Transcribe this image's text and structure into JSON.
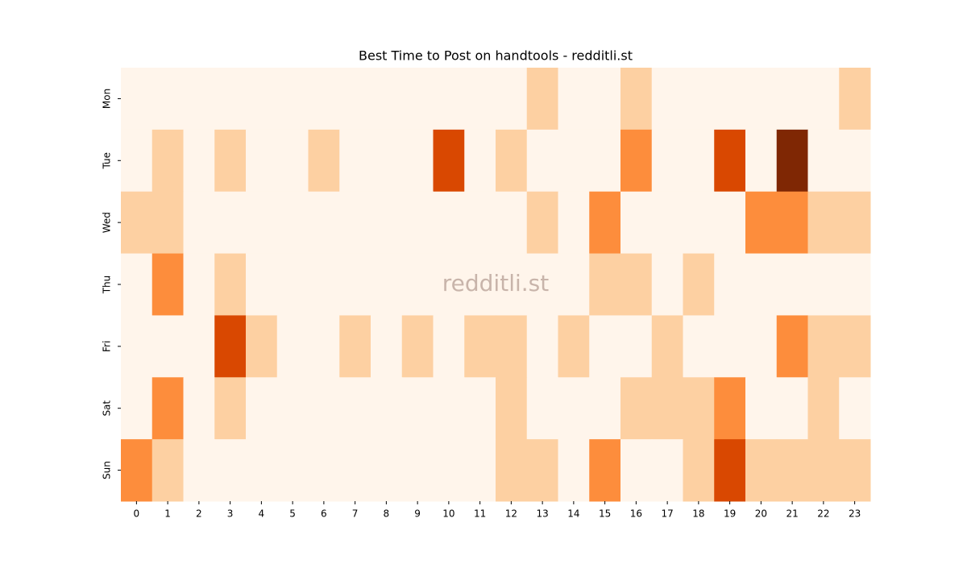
{
  "chart_data": {
    "type": "heatmap",
    "title": "Best Time to Post on handtools - redditli.st",
    "watermark": "redditli.st",
    "x": [
      0,
      1,
      2,
      3,
      4,
      5,
      6,
      7,
      8,
      9,
      10,
      11,
      12,
      13,
      14,
      15,
      16,
      17,
      18,
      19,
      20,
      21,
      22,
      23
    ],
    "y": [
      "Mon",
      "Tue",
      "Wed",
      "Thu",
      "Fri",
      "Sat",
      "Sun"
    ],
    "values": [
      [
        0,
        0,
        0,
        0,
        0,
        0,
        0,
        0,
        0,
        0,
        0,
        0,
        0,
        1,
        0,
        0,
        1,
        0,
        0,
        0,
        0,
        0,
        0,
        1
      ],
      [
        0,
        1,
        0,
        1,
        0,
        0,
        1,
        0,
        0,
        0,
        3,
        0,
        1,
        0,
        0,
        0,
        2,
        0,
        0,
        3,
        0,
        4,
        0,
        0
      ],
      [
        1,
        1,
        0,
        0,
        0,
        0,
        0,
        0,
        0,
        0,
        0,
        0,
        0,
        1,
        0,
        2,
        0,
        0,
        0,
        0,
        2,
        2,
        1,
        1
      ],
      [
        0,
        2,
        0,
        1,
        0,
        0,
        0,
        0,
        0,
        0,
        0,
        0,
        0,
        0,
        0,
        1,
        1,
        0,
        1,
        0,
        0,
        0,
        0,
        0
      ],
      [
        0,
        0,
        0,
        3,
        1,
        0,
        0,
        1,
        0,
        1,
        0,
        1,
        1,
        0,
        1,
        0,
        0,
        1,
        0,
        0,
        0,
        2,
        1,
        1
      ],
      [
        0,
        2,
        0,
        1,
        0,
        0,
        0,
        0,
        0,
        0,
        0,
        0,
        1,
        0,
        0,
        0,
        1,
        1,
        1,
        2,
        0,
        0,
        1,
        0
      ],
      [
        2,
        1,
        0,
        0,
        0,
        0,
        0,
        0,
        0,
        0,
        0,
        0,
        1,
        1,
        0,
        2,
        0,
        0,
        1,
        3,
        1,
        1,
        1,
        1
      ]
    ],
    "colors": [
      "#fff5eb",
      "#fdd0a2",
      "#fd8d3c",
      "#d94801",
      "#7f2704"
    ]
  }
}
